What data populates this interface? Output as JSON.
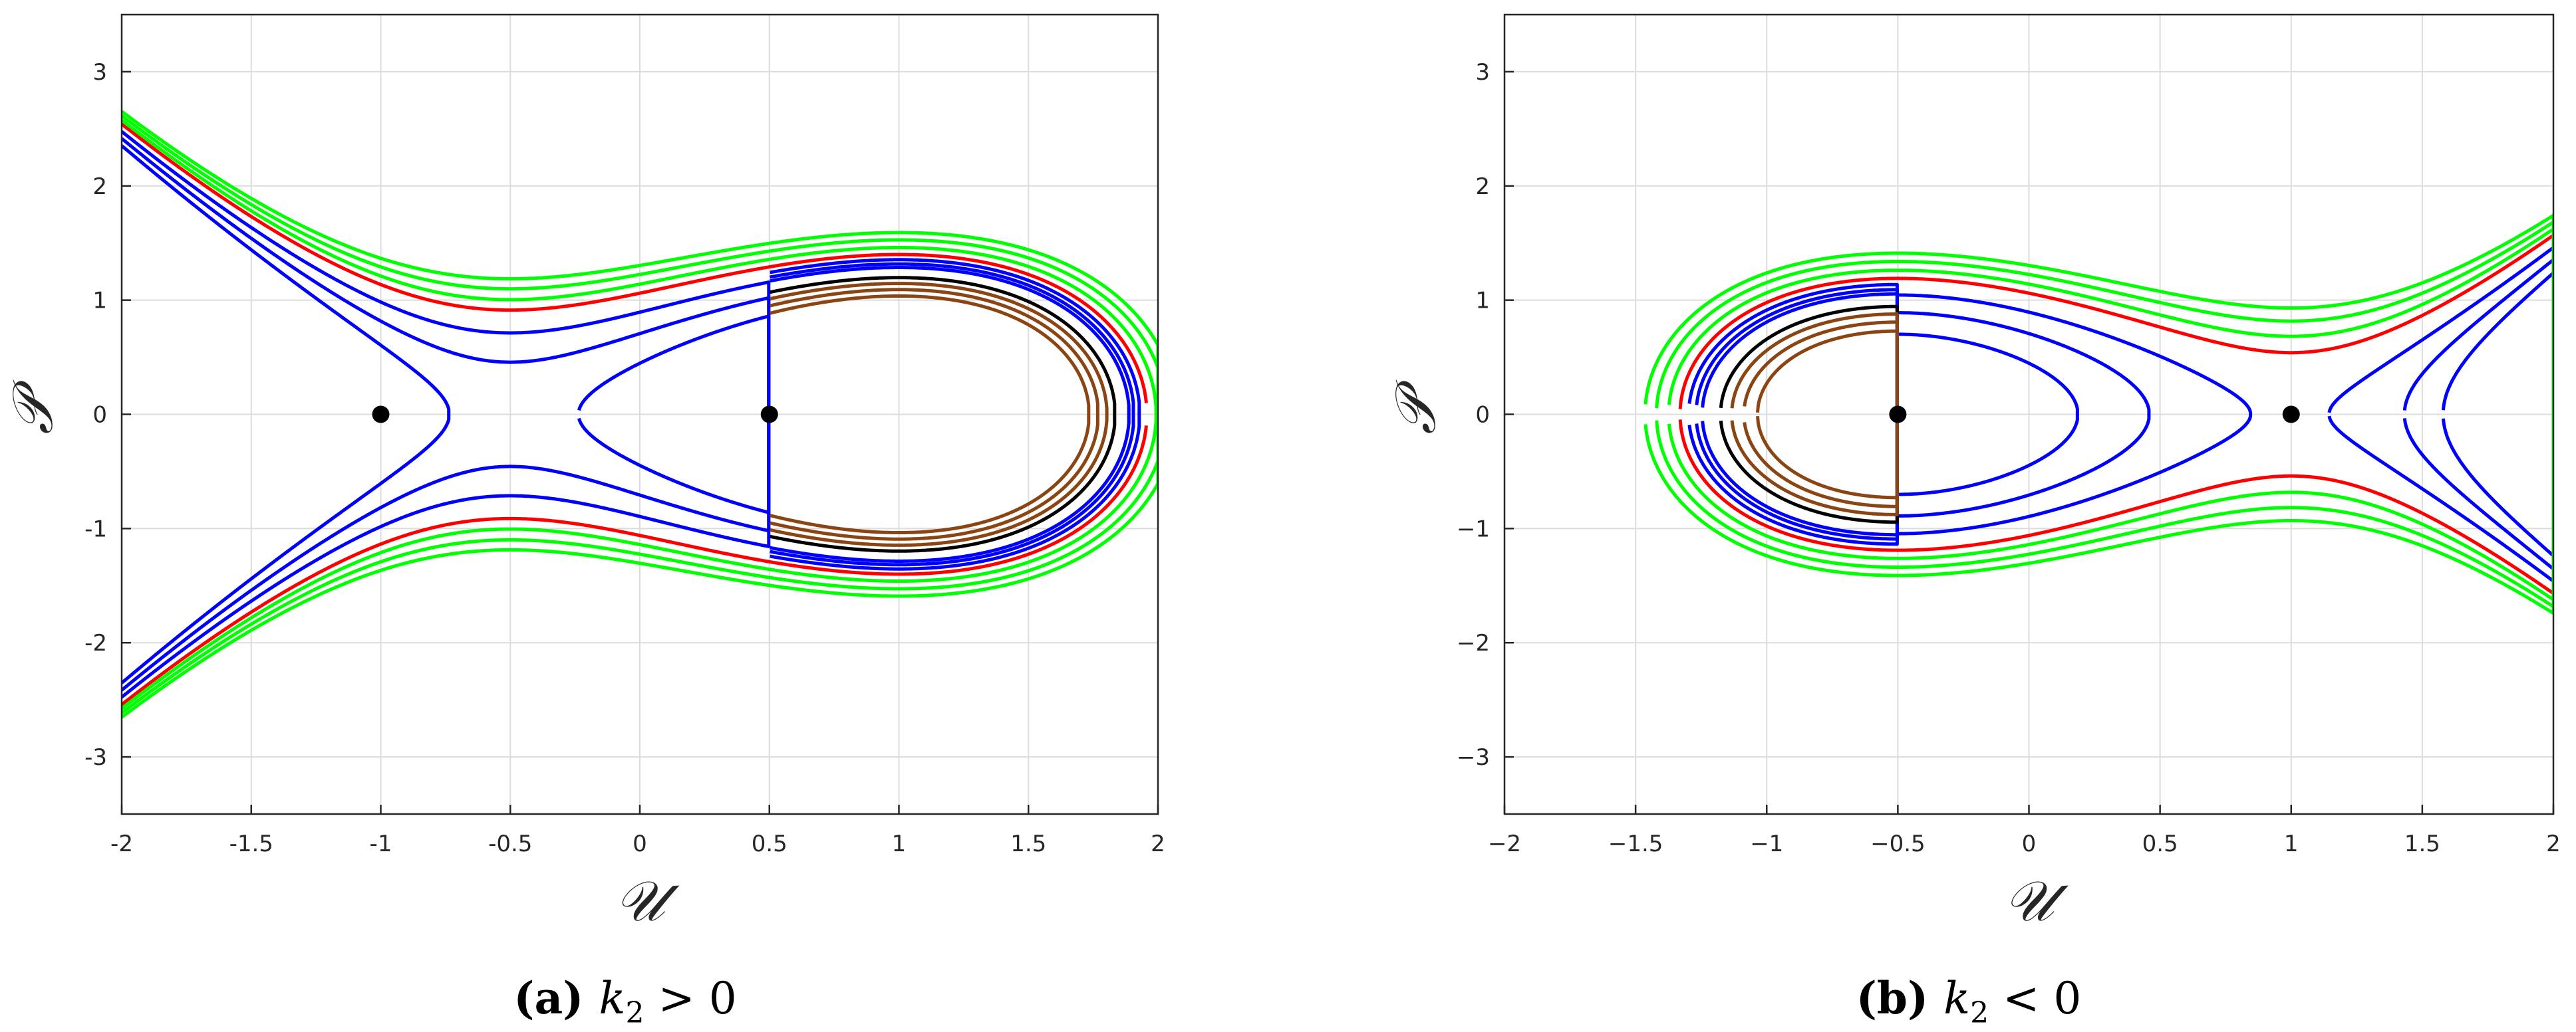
{
  "chart_data": [
    {
      "panel": "a",
      "type": "line",
      "subplot_label": "(a)",
      "caption_var": "k",
      "caption_sub": "2",
      "caption_rel": " > 0",
      "xlabel": "𝒰",
      "ylabel": "𝒫",
      "xlim": [
        -2,
        2
      ],
      "ylim": [
        -3.5,
        3.5
      ],
      "xticks": [
        -2,
        -1.5,
        -1,
        -0.5,
        0,
        0.5,
        1,
        1.5,
        2
      ],
      "xtick_labels": [
        "-2",
        "-1.5",
        "-1",
        "-0.5",
        "0",
        "0.5",
        "1",
        "1.5",
        "2"
      ],
      "yticks": [
        -3,
        -2,
        -1,
        0,
        1,
        2,
        3
      ],
      "ytick_labels": [
        "-3",
        "-2",
        "-1",
        "0",
        "1",
        "2",
        "3"
      ],
      "grid": true,
      "potential_sign": 1,
      "equilibria": [
        {
          "U": -1,
          "P": 0,
          "kind": "center"
        },
        {
          "U": 0.5,
          "P": 0,
          "kind": "saddle"
        }
      ],
      "levels": [
        {
          "E": 0.1,
          "color": "#0000ff"
        },
        {
          "E": 0.25,
          "color": "#0000ff"
        },
        {
          "E": 0.4,
          "color": "#0000ff"
        },
        {
          "E": 0.5625,
          "color": "#ff0000"
        },
        {
          "E": 0.65,
          "color": "#00ff00"
        },
        {
          "E": 0.75,
          "color": "#00ff00"
        },
        {
          "E": 0.85,
          "color": "#00ff00"
        },
        {
          "E": 0.5,
          "color": "#0000ff",
          "branch": "right"
        },
        {
          "E": 0.45,
          "color": "#0000ff",
          "branch": "right"
        },
        {
          "E": 0.41,
          "color": "#0000ff",
          "branch": "right"
        },
        {
          "E": 0.3,
          "color": "#000000",
          "branch": "right"
        },
        {
          "E": 0.24,
          "color": "#8b4513",
          "branch": "right"
        },
        {
          "E": 0.18,
          "color": "#8b4513",
          "branch": "right"
        },
        {
          "E": 0.12,
          "color": "#8b4513",
          "branch": "right"
        }
      ]
    },
    {
      "panel": "b",
      "type": "line",
      "subplot_label": "(b)",
      "caption_var": "k",
      "caption_sub": "2",
      "caption_rel": " < 0",
      "xlabel": "𝒰",
      "ylabel": "𝒫",
      "xlim": [
        -2,
        2
      ],
      "ylim": [
        -3.5,
        3.5
      ],
      "xticks": [
        -2,
        -1.5,
        -1,
        -0.5,
        0,
        0.5,
        1,
        1.5,
        2
      ],
      "xtick_labels": [
        "−2",
        "−1.5",
        "−1",
        "−0.5",
        "0",
        "0.5",
        "1",
        "1.5",
        "2"
      ],
      "yticks": [
        -3,
        -2,
        -1,
        0,
        1,
        2,
        3
      ],
      "ytick_labels": [
        "−3",
        "−2",
        "−1",
        "0",
        "1",
        "2",
        "3"
      ],
      "grid": true,
      "potential_sign": -1,
      "equilibria": [
        {
          "U": 1,
          "P": 0,
          "kind": "center"
        },
        {
          "U": -0.5,
          "P": 0,
          "kind": "saddle"
        }
      ],
      "levels": [
        {
          "E": 0.1,
          "color": "#0000ff"
        },
        {
          "E": 0.25,
          "color": "#0000ff"
        },
        {
          "E": 0.4,
          "color": "#0000ff"
        },
        {
          "E": 0.5625,
          "color": "#ff0000"
        },
        {
          "E": 0.65,
          "color": "#00ff00"
        },
        {
          "E": 0.75,
          "color": "#00ff00"
        },
        {
          "E": 0.85,
          "color": "#00ff00"
        },
        {
          "E": 0.5,
          "color": "#0000ff",
          "branch": "left"
        },
        {
          "E": 0.45,
          "color": "#0000ff",
          "branch": "left"
        },
        {
          "E": 0.41,
          "color": "#0000ff",
          "branch": "left"
        },
        {
          "E": 0.3,
          "color": "#000000",
          "branch": "left"
        },
        {
          "E": 0.24,
          "color": "#8b4513",
          "branch": "left"
        },
        {
          "E": 0.18,
          "color": "#8b4513",
          "branch": "left"
        },
        {
          "E": 0.12,
          "color": "#8b4513",
          "branch": "left"
        }
      ]
    }
  ]
}
